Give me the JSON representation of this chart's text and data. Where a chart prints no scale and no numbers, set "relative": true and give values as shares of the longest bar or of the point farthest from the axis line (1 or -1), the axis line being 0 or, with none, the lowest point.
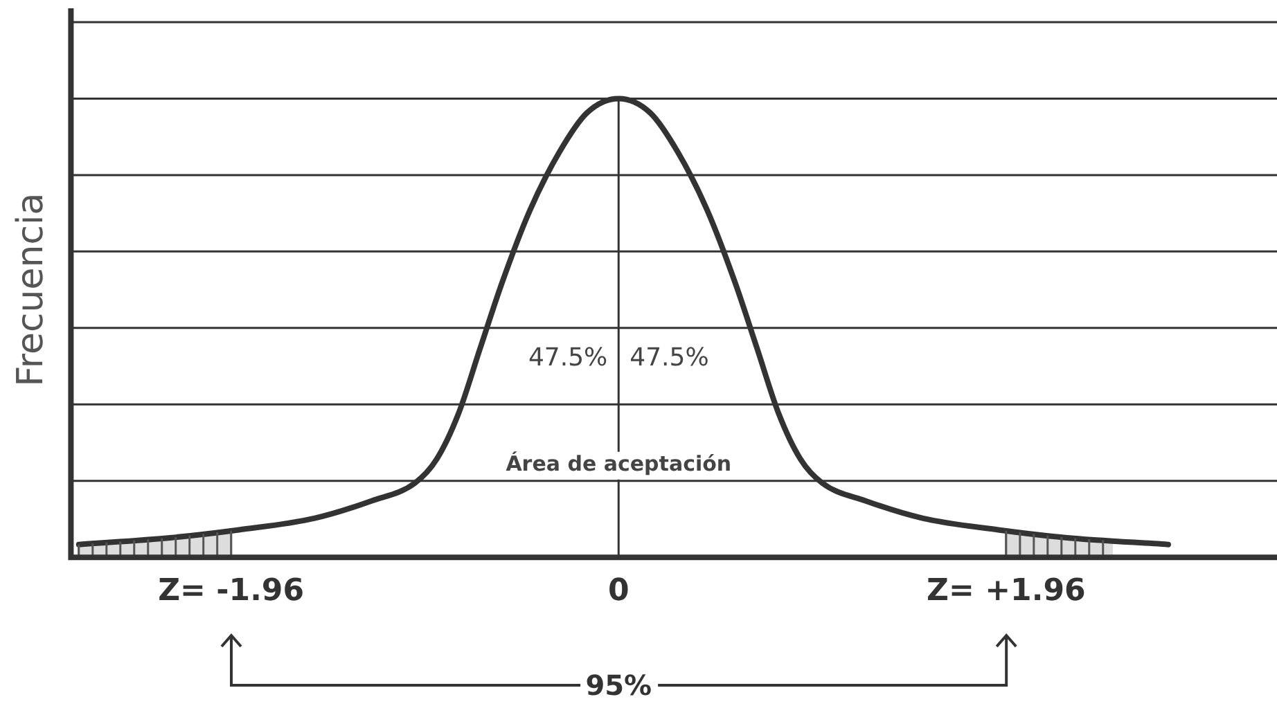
{
  "chart_data": {
    "type": "line",
    "ylabel": "Frecuencia",
    "relative": true,
    "grid": "y",
    "marker": "none",
    "line_style": "solid",
    "x": [
      -2.73,
      -2.26,
      -1.92,
      -1.54,
      -1.25,
      -1.03,
      -0.92,
      -0.81,
      -0.7,
      -0.59,
      -0.45,
      -0.3,
      -0.16,
      0,
      0.16,
      0.3,
      0.45,
      0.59,
      0.7,
      0.81,
      0.92,
      1.03,
      1.25,
      1.54,
      1.92,
      2.26,
      2.78
    ],
    "series": [
      {
        "color": "#333333",
        "values": [
          0.028,
          0.043,
          0.06,
          0.085,
          0.123,
          0.162,
          0.214,
          0.313,
          0.456,
          0.598,
          0.755,
          0.883,
          0.969,
          1,
          0.969,
          0.883,
          0.755,
          0.598,
          0.456,
          0.313,
          0.214,
          0.162,
          0.123,
          0.085,
          0.06,
          0.043,
          0.028
        ]
      },
      {
        "type": "area",
        "color": "#dddddd",
        "x": [
          -2.73,
          -2.26,
          -1.96
        ],
        "values": [
          0.028,
          0.043,
          0.058
        ]
      },
      {
        "type": "area",
        "color": "#dddddd",
        "x": [
          1.96,
          2.26,
          2.5
        ],
        "values": [
          0.058,
          0.043,
          0.036
        ]
      }
    ],
    "xlim": [
      -2.77,
      3.33
    ],
    "xticks": [
      {
        "value": -1.96,
        "label": "Z= -1.96"
      },
      {
        "value": 0,
        "label": "0"
      },
      {
        "value": 1.96,
        "label": "Z= +1.96"
      }
    ],
    "ref_lines": [
      {
        "axis": "x",
        "value": 0,
        "color": "#333333"
      }
    ],
    "annotations": [
      "47.5%",
      "47.5%",
      {
        "text": "Área de aceptación",
        "x": 0,
        "y": 0.2
      },
      "95%"
    ]
  }
}
